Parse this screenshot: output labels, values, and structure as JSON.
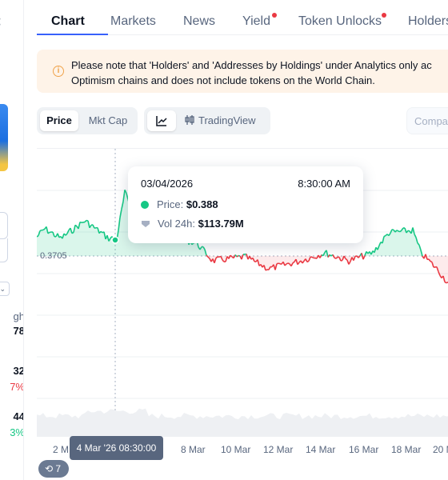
{
  "left_panel": {
    "values": [
      {
        "label": "gh",
        "value": "78"
      },
      {
        "label": "32",
        "value": "7%"
      },
      {
        "label": "44",
        "value": "3%"
      }
    ]
  },
  "tabs": [
    {
      "label": "Chart",
      "active": true,
      "badge": false
    },
    {
      "label": "Markets",
      "active": false,
      "badge": false
    },
    {
      "label": "News",
      "active": false,
      "badge": false
    },
    {
      "label": "Yield",
      "active": false,
      "badge": true
    },
    {
      "label": "Token Unlocks",
      "active": false,
      "badge": true
    },
    {
      "label": "Holders",
      "active": false,
      "badge": false
    }
  ],
  "notice": {
    "line1": "Please note that 'Holders' and 'Addresses by Holdings' under Analytics only ac",
    "line2": "Optimism chains and does not include tokens on the World Chain."
  },
  "controls": {
    "price_label": "Price",
    "mktcap_label": "Mkt Cap",
    "tradingview_label": "TradingView",
    "compare_placeholder": "Compa"
  },
  "chart": {
    "baseline_label": "0.3705",
    "x_labels": [
      "2 M",
      "8 Mar",
      "10 Mar",
      "12 Mar",
      "14 Mar",
      "16 Mar",
      "18 Mar",
      "20 M"
    ],
    "crosshair_label": "4 Mar '26 08:30:00",
    "up_color": "#16c784",
    "down_color": "#ea3943"
  },
  "tooltip": {
    "date": "03/04/2026",
    "time": "8:30:00 AM",
    "price_label": "Price:",
    "price_value": "$0.388",
    "vol_label": "Vol 24h:",
    "vol_value": "$113.79M"
  },
  "history_badge": "7"
}
